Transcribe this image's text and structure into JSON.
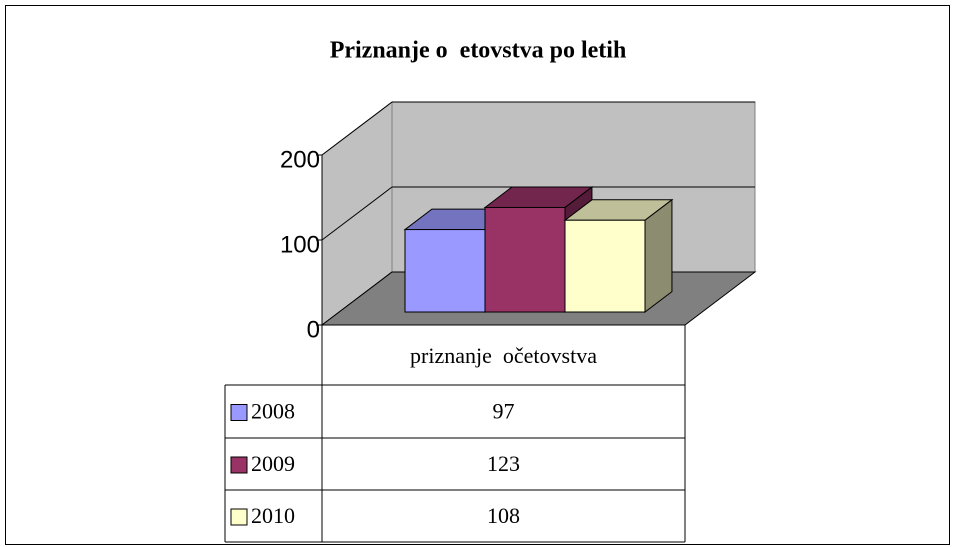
{
  "chart_data": {
    "type": "bar3d",
    "title": "Priznanje o  etovstva po letih",
    "categories": [
      "priznanje  očetovstva"
    ],
    "series": [
      {
        "name": "2008",
        "color": "#9999ff",
        "values": [
          97
        ]
      },
      {
        "name": "2009",
        "color": "#993366",
        "values": [
          123
        ]
      },
      {
        "name": "2010",
        "color": "#ffffcc",
        "values": [
          108
        ]
      }
    ],
    "ylim": [
      0,
      200
    ],
    "yticks": [
      0,
      100,
      200
    ],
    "grid": true
  }
}
